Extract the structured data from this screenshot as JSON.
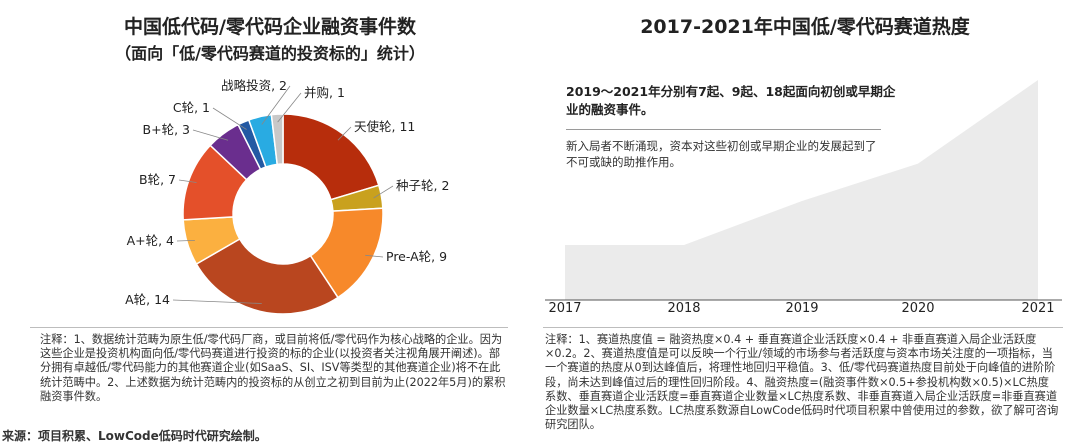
{
  "left": {
    "title": "中国低代码/零代码企业融资事件数",
    "subtitle": "（面向「低/零代码赛道的投资标的」统计）",
    "note": "注释：1、数据统计范畴为原生低/零代码厂商，或目前将低/零代码作为核心战略的企业。因为这些企业是投资机构面向低/零代码赛道进行投资的标的企业(以投资者关注视角展开阐述)。部分拥有卓越低/零代码能力的其他赛道企业(如SaaS、SI、ISV等类型的其他赛道企业)将不在此统计范畴中。2、上述数据为统计范畴内的投资标的从创立之初到目前为止(2022年5月)的累积融资事件数。",
    "source": "来源：项目积累、LowCode低码时代研究绘制。"
  },
  "right": {
    "title": "2017-2021年中国低/零代码赛道热度",
    "callout_bold": "2019～2021年分别有7起、9起、18起面向初创或早期企业的融资事件。",
    "callout_text": "新入局者不断涌现，资本对这些初创或早期企业的发展起到了不可或缺的助推作用。",
    "note": "注释：1、赛道热度值 = 融资热度×0.4 + 垂直赛道企业活跃度×0.4 + 非垂直赛道入局企业活跃度×0.2。2、赛道热度值是可以反映一个行业/领域的市场参与者活跃度与资本市场关注度的一项指标，当一个赛道的热度从0到达峰值后，将理性地回归平稳值。3、低/零代码赛道热度目前处于向峰值的进阶阶段，尚未达到峰值过后的理性回归阶段。4、融资热度=(融资事件数×0.5+参投机构数×0.5)×LC热度系数、垂直赛道企业活跃度=垂直赛道企业数量×LC热度系数、非垂直赛道入局企业活跃度=非垂直赛道企业数量×LC热度系数。LC热度系数源自LowCode低码时代项目积累中曾使用过的参数，欲了解可咨询研究团队。"
  },
  "chart_data": [
    {
      "type": "pie",
      "donut": true,
      "categories": [
        "天使轮",
        "种子轮",
        "Pre-A轮",
        "A轮",
        "A+轮",
        "B轮",
        "B+轮",
        "C轮",
        "战略投资",
        "并购"
      ],
      "values": [
        11,
        2,
        9,
        14,
        4,
        7,
        3,
        1,
        2,
        1
      ],
      "data_labels": [
        "天使轮, 11",
        "种子轮, 2",
        "Pre-A轮, 9",
        "A轮, 14",
        "A+轮, 4",
        "B轮, 7",
        "B+轮, 3",
        "C轮, 1",
        "战略投资, 2",
        "并购, 1"
      ],
      "colors": [
        "#b72d0c",
        "#c9a11e",
        "#f7892a",
        "#b9461f",
        "#fbb040",
        "#e4502a",
        "#6a2e8e",
        "#2359a3",
        "#29abe2",
        "#c8c8c8"
      ]
    },
    {
      "type": "area",
      "categories": [
        "2017",
        "2018",
        "2019",
        "2020",
        "2021"
      ],
      "values": [
        0.25,
        0.25,
        0.45,
        0.62,
        1.0
      ],
      "color": "#ebebeb"
    }
  ]
}
